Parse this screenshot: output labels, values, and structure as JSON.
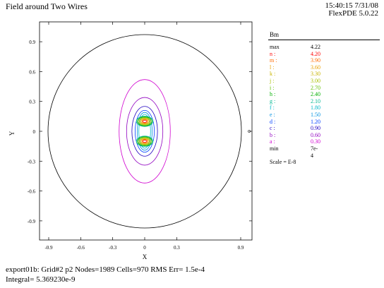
{
  "header": {
    "title": "Field around Two Wires",
    "timestamp": "15:40:15 7/31/08",
    "version": "FlexPDE 5.0.22"
  },
  "chart_data": {
    "type": "contour",
    "xlabel": "X",
    "ylabel": "Y",
    "xlim": [
      -1.05,
      1.05
    ],
    "ylim": [
      -1.05,
      1.05
    ],
    "x_ticks": [
      -0.9,
      -0.6,
      -0.3,
      0,
      0.3,
      0.9
    ],
    "x_tick_labels": [
      "-0.9",
      "-0.6",
      "-0.3",
      "0",
      "0.3",
      "0.9"
    ],
    "y_ticks": [
      0.9,
      0.6,
      0.3,
      0,
      -0.3,
      -0.6,
      -0.9
    ],
    "y_tick_labels": [
      "0.9",
      "0.6",
      "0.3",
      "0",
      "-0.3",
      "-0.6",
      "-0.9"
    ],
    "boundary_radius": 1.0,
    "wire_positions": [
      [
        0,
        0.1
      ],
      [
        0,
        -0.1
      ]
    ],
    "legend": {
      "title": "Bm",
      "max": {
        "label": "max",
        "value": "4.22"
      },
      "levels": [
        {
          "label": "n :",
          "value": "4.20",
          "color": "#ff0000"
        },
        {
          "label": "m :",
          "value": "3.90",
          "color": "#ff6a00"
        },
        {
          "label": "l :",
          "value": "3.60",
          "color": "#e8a000"
        },
        {
          "label": "k :",
          "value": "3.30",
          "color": "#c8b400"
        },
        {
          "label": "j :",
          "value": "3.00",
          "color": "#a8c000"
        },
        {
          "label": "i :",
          "value": "2.70",
          "color": "#60c000"
        },
        {
          "label": "h :",
          "value": "2.40",
          "color": "#00b000"
        },
        {
          "label": "g :",
          "value": "2.10",
          "color": "#00b890"
        },
        {
          "label": "f :",
          "value": "1.80",
          "color": "#00b8c8"
        },
        {
          "label": "e :",
          "value": "1.50",
          "color": "#0090e0"
        },
        {
          "label": "d :",
          "value": "1.20",
          "color": "#0040ff"
        },
        {
          "label": "c :",
          "value": "0.90",
          "color": "#2000c0"
        },
        {
          "label": "b :",
          "value": "0.60",
          "color": "#9000c0"
        },
        {
          "label": "a :",
          "value": "0.30",
          "color": "#d000d0"
        }
      ],
      "min": {
        "label": "min",
        "value": "7e-4"
      },
      "scale": "Scale = E-8"
    }
  },
  "footer": {
    "line1": "export01b:  Grid#2  p2  Nodes=1989 Cells=970 RMS Err= 1.5e-4",
    "line2": "Integral=  5.369230e-9"
  }
}
